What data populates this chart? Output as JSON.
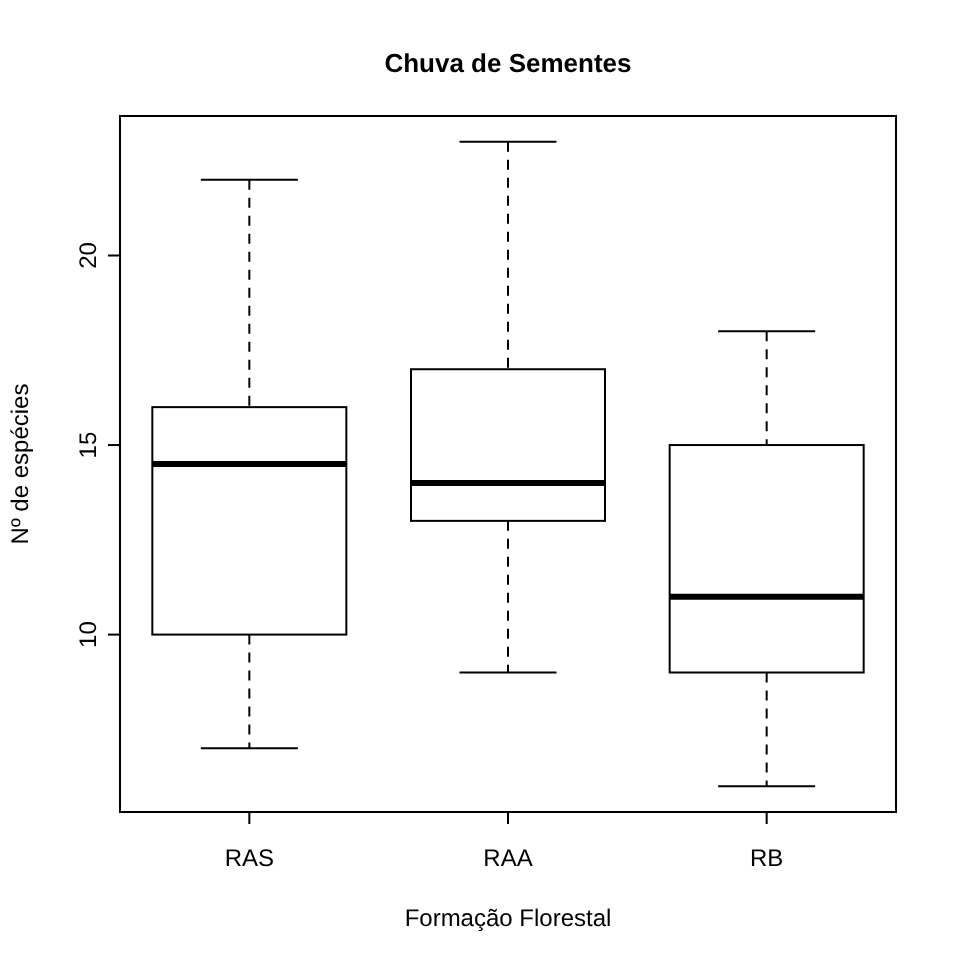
{
  "chart_data": {
    "type": "box",
    "title": "Chuva de Sementes",
    "xlabel": "Formação Florestal",
    "ylabel": "Nº de espécies",
    "categories": [
      "RAS",
      "RAA",
      "RB"
    ],
    "boxes": [
      {
        "low": 7,
        "q1": 10,
        "median": 14.5,
        "q3": 16,
        "high": 22
      },
      {
        "low": 9,
        "q1": 13,
        "median": 14,
        "q3": 17,
        "high": 23
      },
      {
        "low": 6,
        "q1": 9,
        "median": 11,
        "q3": 15,
        "high": 18
      }
    ],
    "ylim": [
      5.32,
      23.68
    ],
    "yticks": [
      10,
      15,
      20
    ],
    "line_style": "dashed",
    "grid": false
  }
}
